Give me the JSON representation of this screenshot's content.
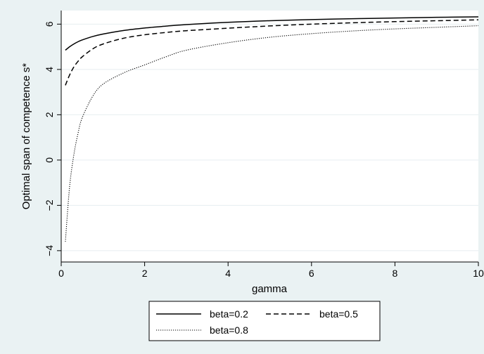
{
  "chart_data": {
    "type": "line",
    "xlabel": "gamma",
    "ylabel": "Optimal span of competence s*",
    "xlim": [
      0,
      10
    ],
    "ylim": [
      -4.5,
      6.6
    ],
    "xticks": [
      0,
      2,
      4,
      6,
      8,
      10
    ],
    "yticks": [
      -4,
      -2,
      0,
      2,
      4,
      6
    ],
    "grid": "horizontal",
    "legend_position": "bottom",
    "x": [
      0.1,
      0.2,
      0.3,
      0.4,
      0.5,
      0.75,
      1,
      1.5,
      2,
      2.5,
      3,
      4,
      5,
      6,
      7,
      8,
      9,
      10
    ],
    "series": [
      {
        "name": "beta=0.2",
        "style": "solid",
        "values": [
          4.85,
          5.0,
          5.12,
          5.22,
          5.3,
          5.45,
          5.56,
          5.72,
          5.83,
          5.91,
          5.98,
          6.08,
          6.15,
          6.2,
          6.24,
          6.27,
          6.3,
          6.32
        ]
      },
      {
        "name": "beta=0.5",
        "style": "dashed",
        "values": [
          3.3,
          3.75,
          4.1,
          4.35,
          4.55,
          4.9,
          5.12,
          5.38,
          5.53,
          5.63,
          5.71,
          5.82,
          5.92,
          6.0,
          6.06,
          6.11,
          6.15,
          6.19
        ]
      },
      {
        "name": "beta=0.8",
        "style": "dotted",
        "values": [
          -3.6,
          -1.2,
          0.2,
          1.15,
          1.85,
          2.8,
          3.35,
          3.85,
          4.2,
          4.55,
          4.85,
          5.18,
          5.42,
          5.58,
          5.7,
          5.79,
          5.86,
          5.93
        ]
      }
    ]
  }
}
